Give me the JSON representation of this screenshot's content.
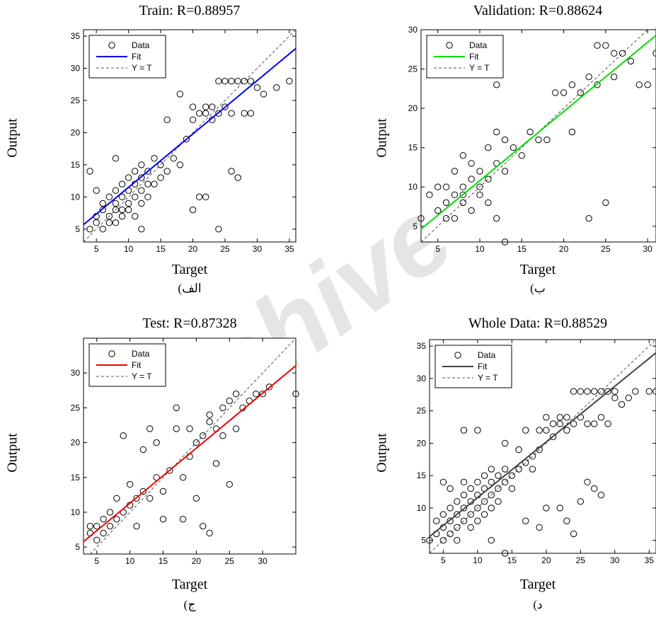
{
  "watermark": "Archive of SID",
  "chart_data": [
    {
      "type": "scatter",
      "title": "Train: R=0.88957",
      "xlabel": "Target",
      "ylabel": "Output",
      "caption": "الف)",
      "xlim": [
        3,
        36
      ],
      "ylim": [
        3,
        36
      ],
      "xticks": [
        5,
        10,
        15,
        20,
        25,
        30,
        35
      ],
      "yticks": [
        5,
        10,
        15,
        20,
        25,
        30,
        35
      ],
      "fit_color": "#0000ff",
      "fit": {
        "slope": 0.83,
        "intercept": 3.2
      },
      "legend": [
        "Data",
        "Fit",
        "Y = T"
      ],
      "legend_position": "top-left",
      "points": [
        [
          4,
          5
        ],
        [
          5,
          6
        ],
        [
          5,
          7
        ],
        [
          6,
          5
        ],
        [
          6,
          8
        ],
        [
          6,
          9
        ],
        [
          7,
          6
        ],
        [
          7,
          7
        ],
        [
          7,
          10
        ],
        [
          8,
          8
        ],
        [
          8,
          9
        ],
        [
          8,
          11
        ],
        [
          8,
          6
        ],
        [
          9,
          8
        ],
        [
          9,
          10
        ],
        [
          9,
          12
        ],
        [
          9,
          7
        ],
        [
          10,
          9
        ],
        [
          10,
          11
        ],
        [
          10,
          13
        ],
        [
          10,
          8
        ],
        [
          11,
          10
        ],
        [
          11,
          12
        ],
        [
          11,
          14
        ],
        [
          11,
          7
        ],
        [
          12,
          11
        ],
        [
          12,
          13
        ],
        [
          12,
          15
        ],
        [
          12,
          9
        ],
        [
          13,
          12
        ],
        [
          13,
          14
        ],
        [
          13,
          10
        ],
        [
          14,
          16
        ],
        [
          14,
          12
        ],
        [
          15,
          13
        ],
        [
          15,
          15
        ],
        [
          16,
          14
        ],
        [
          16,
          22
        ],
        [
          17,
          16
        ],
        [
          18,
          15
        ],
        [
          19,
          19
        ],
        [
          20,
          22
        ],
        [
          20,
          24
        ],
        [
          21,
          23
        ],
        [
          21,
          10
        ],
        [
          22,
          24
        ],
        [
          22,
          23
        ],
        [
          23,
          24
        ],
        [
          23,
          22
        ],
        [
          24,
          28
        ],
        [
          24,
          23
        ],
        [
          25,
          28
        ],
        [
          25,
          24
        ],
        [
          26,
          14
        ],
        [
          26,
          28
        ],
        [
          26,
          23
        ],
        [
          27,
          13
        ],
        [
          27,
          28
        ],
        [
          28,
          28
        ],
        [
          28,
          23
        ],
        [
          29,
          28
        ],
        [
          29,
          23
        ],
        [
          30,
          27
        ],
        [
          31,
          26
        ],
        [
          33,
          27
        ],
        [
          35,
          28
        ],
        [
          18,
          26
        ],
        [
          24,
          5
        ],
        [
          20,
          8
        ],
        [
          12,
          5
        ],
        [
          8,
          16
        ],
        [
          4,
          14
        ],
        [
          5,
          11
        ],
        [
          22,
          10
        ]
      ]
    },
    {
      "type": "scatter",
      "title": "Validation: R=0.88624",
      "xlabel": "Target",
      "ylabel": "Output",
      "caption": "ب)",
      "xlim": [
        3,
        31
      ],
      "ylim": [
        3,
        30
      ],
      "xticks": [
        5,
        10,
        15,
        20,
        25,
        30
      ],
      "yticks": [
        5,
        10,
        15,
        20,
        25,
        30
      ],
      "fit_color": "#00dd00",
      "fit": {
        "slope": 0.88,
        "intercept": 2.0
      },
      "legend": [
        "Data",
        "Fit",
        "Y = T"
      ],
      "legend_position": "top-left",
      "points": [
        [
          3,
          6
        ],
        [
          4,
          9
        ],
        [
          5,
          7
        ],
        [
          5,
          10
        ],
        [
          6,
          8
        ],
        [
          6,
          6
        ],
        [
          7,
          9
        ],
        [
          7,
          12
        ],
        [
          7,
          6
        ],
        [
          8,
          8
        ],
        [
          8,
          10
        ],
        [
          8,
          14
        ],
        [
          9,
          7
        ],
        [
          9,
          11
        ],
        [
          9,
          13
        ],
        [
          10,
          10
        ],
        [
          10,
          12
        ],
        [
          10,
          9
        ],
        [
          11,
          11
        ],
        [
          11,
          15
        ],
        [
          11,
          8
        ],
        [
          12,
          13
        ],
        [
          12,
          17
        ],
        [
          12,
          6
        ],
        [
          13,
          12
        ],
        [
          13,
          16
        ],
        [
          13,
          3
        ],
        [
          14,
          15
        ],
        [
          15,
          14
        ],
        [
          16,
          17
        ],
        [
          17,
          16
        ],
        [
          18,
          16
        ],
        [
          19,
          22
        ],
        [
          20,
          22
        ],
        [
          21,
          23
        ],
        [
          21,
          17
        ],
        [
          22,
          22
        ],
        [
          23,
          24
        ],
        [
          23,
          6
        ],
        [
          24,
          28
        ],
        [
          24,
          23
        ],
        [
          25,
          28
        ],
        [
          25,
          8
        ],
        [
          26,
          27
        ],
        [
          26,
          24
        ],
        [
          27,
          27
        ],
        [
          28,
          26
        ],
        [
          29,
          23
        ],
        [
          30,
          23
        ],
        [
          31,
          27
        ],
        [
          12,
          23
        ],
        [
          8,
          9
        ],
        [
          6,
          10
        ]
      ]
    },
    {
      "type": "scatter",
      "title": "Test: R=0.87328",
      "xlabel": "Target",
      "ylabel": "Output",
      "caption": "ج)",
      "xlim": [
        3,
        35
      ],
      "ylim": [
        4,
        35
      ],
      "xticks": [
        5,
        10,
        15,
        20,
        25,
        30
      ],
      "yticks": [
        5,
        10,
        15,
        20,
        25,
        30
      ],
      "fit_color": "#ee0000",
      "fit": {
        "slope": 0.79,
        "intercept": 3.4
      },
      "legend": [
        "Data",
        "Fit",
        "Y = T"
      ],
      "legend_position": "top-left",
      "points": [
        [
          4,
          7
        ],
        [
          4,
          8
        ],
        [
          5,
          6
        ],
        [
          5,
          8
        ],
        [
          6,
          7
        ],
        [
          6,
          9
        ],
        [
          7,
          8
        ],
        [
          7,
          10
        ],
        [
          8,
          9
        ],
        [
          8,
          12
        ],
        [
          9,
          10
        ],
        [
          9,
          21
        ],
        [
          10,
          11
        ],
        [
          10,
          14
        ],
        [
          11,
          8
        ],
        [
          11,
          12
        ],
        [
          12,
          13
        ],
        [
          12,
          19
        ],
        [
          13,
          12
        ],
        [
          13,
          22
        ],
        [
          14,
          15
        ],
        [
          14,
          20
        ],
        [
          15,
          13
        ],
        [
          15,
          9
        ],
        [
          16,
          16
        ],
        [
          17,
          22
        ],
        [
          17,
          25
        ],
        [
          18,
          15
        ],
        [
          18,
          9
        ],
        [
          19,
          18
        ],
        [
          19,
          22
        ],
        [
          20,
          12
        ],
        [
          20,
          20
        ],
        [
          21,
          21
        ],
        [
          21,
          8
        ],
        [
          22,
          23
        ],
        [
          22,
          7
        ],
        [
          23,
          22
        ],
        [
          23,
          17
        ],
        [
          24,
          21
        ],
        [
          24,
          25
        ],
        [
          25,
          26
        ],
        [
          25,
          14
        ],
        [
          26,
          22
        ],
        [
          26,
          27
        ],
        [
          27,
          25
        ],
        [
          28,
          26
        ],
        [
          29,
          27
        ],
        [
          30,
          27
        ],
        [
          31,
          28
        ],
        [
          35,
          27
        ],
        [
          22,
          24
        ]
      ]
    },
    {
      "type": "scatter",
      "title": "Whole Data: R=0.88529",
      "xlabel": "Target",
      "ylabel": "Output",
      "caption": "د)",
      "xlim": [
        3,
        36
      ],
      "ylim": [
        3,
        36
      ],
      "xticks": [
        5,
        10,
        15,
        20,
        25,
        30,
        35
      ],
      "yticks": [
        5,
        10,
        15,
        20,
        25,
        30,
        35
      ],
      "fit_color": "#444444",
      "fit": {
        "slope": 0.86,
        "intercept": 3.0
      },
      "legend": [
        "Data",
        "Fit",
        "Y = T"
      ],
      "legend_position": "top-left",
      "points": [
        [
          3,
          5
        ],
        [
          4,
          6
        ],
        [
          4,
          8
        ],
        [
          5,
          5
        ],
        [
          5,
          7
        ],
        [
          5,
          9
        ],
        [
          6,
          6
        ],
        [
          6,
          8
        ],
        [
          6,
          10
        ],
        [
          6,
          13
        ],
        [
          7,
          7
        ],
        [
          7,
          9
        ],
        [
          7,
          11
        ],
        [
          7,
          5
        ],
        [
          8,
          8
        ],
        [
          8,
          10
        ],
        [
          8,
          12
        ],
        [
          8,
          14
        ],
        [
          9,
          9
        ],
        [
          9,
          11
        ],
        [
          9,
          13
        ],
        [
          9,
          7
        ],
        [
          10,
          10
        ],
        [
          10,
          12
        ],
        [
          10,
          14
        ],
        [
          10,
          8
        ],
        [
          11,
          11
        ],
        [
          11,
          13
        ],
        [
          11,
          15
        ],
        [
          11,
          9
        ],
        [
          12,
          12
        ],
        [
          12,
          14
        ],
        [
          12,
          16
        ],
        [
          12,
          10
        ],
        [
          13,
          13
        ],
        [
          13,
          15
        ],
        [
          13,
          11
        ],
        [
          14,
          14
        ],
        [
          14,
          16
        ],
        [
          14,
          20
        ],
        [
          15,
          15
        ],
        [
          15,
          13
        ],
        [
          16,
          16
        ],
        [
          16,
          19
        ],
        [
          17,
          17
        ],
        [
          17,
          22
        ],
        [
          18,
          18
        ],
        [
          18,
          16
        ],
        [
          19,
          19
        ],
        [
          19,
          22
        ],
        [
          20,
          22
        ],
        [
          20,
          24
        ],
        [
          20,
          10
        ],
        [
          21,
          23
        ],
        [
          21,
          21
        ],
        [
          22,
          24
        ],
        [
          22,
          23
        ],
        [
          22,
          10
        ],
        [
          23,
          24
        ],
        [
          23,
          22
        ],
        [
          23,
          8
        ],
        [
          24,
          28
        ],
        [
          24,
          23
        ],
        [
          24,
          6
        ],
        [
          25,
          28
        ],
        [
          25,
          24
        ],
        [
          25,
          11
        ],
        [
          26,
          28
        ],
        [
          26,
          23
        ],
        [
          26,
          14
        ],
        [
          27,
          28
        ],
        [
          27,
          23
        ],
        [
          27,
          13
        ],
        [
          28,
          28
        ],
        [
          28,
          24
        ],
        [
          28,
          12
        ],
        [
          29,
          28
        ],
        [
          29,
          23
        ],
        [
          30,
          28
        ],
        [
          30,
          27
        ],
        [
          31,
          26
        ],
        [
          32,
          27
        ],
        [
          33,
          28
        ],
        [
          35,
          28
        ],
        [
          36,
          28
        ],
        [
          5,
          14
        ],
        [
          12,
          5
        ],
        [
          14,
          3
        ],
        [
          8,
          22
        ],
        [
          10,
          22
        ],
        [
          17,
          8
        ],
        [
          19,
          7
        ]
      ]
    }
  ]
}
